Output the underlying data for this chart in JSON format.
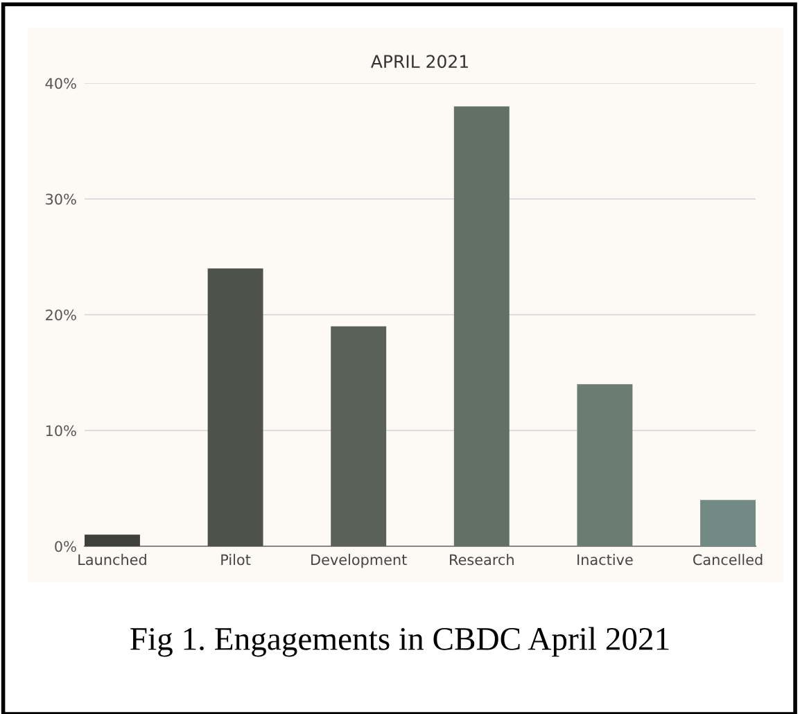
{
  "chart_data": {
    "type": "bar",
    "title": "APRIL 2021",
    "categories": [
      "Launched",
      "Pilot",
      "Development",
      "Research",
      "Inactive",
      "Cancelled"
    ],
    "values": [
      1,
      24,
      19,
      38,
      14,
      4
    ],
    "colors": [
      "#3f403b",
      "#4f524b",
      "#5a6158",
      "#627065",
      "#6a7c74",
      "#728a84"
    ],
    "ylim": [
      0,
      40
    ],
    "yticks": [
      {
        "value": 0,
        "label": "0%"
      },
      {
        "value": 10,
        "label": "10%"
      },
      {
        "value": 20,
        "label": "20%"
      },
      {
        "value": 30,
        "label": "30%"
      },
      {
        "value": 40,
        "label": "40%"
      }
    ],
    "grid": "y",
    "annotations": [
      "Fig 1. Engagements in CBDC April 2021"
    ]
  }
}
